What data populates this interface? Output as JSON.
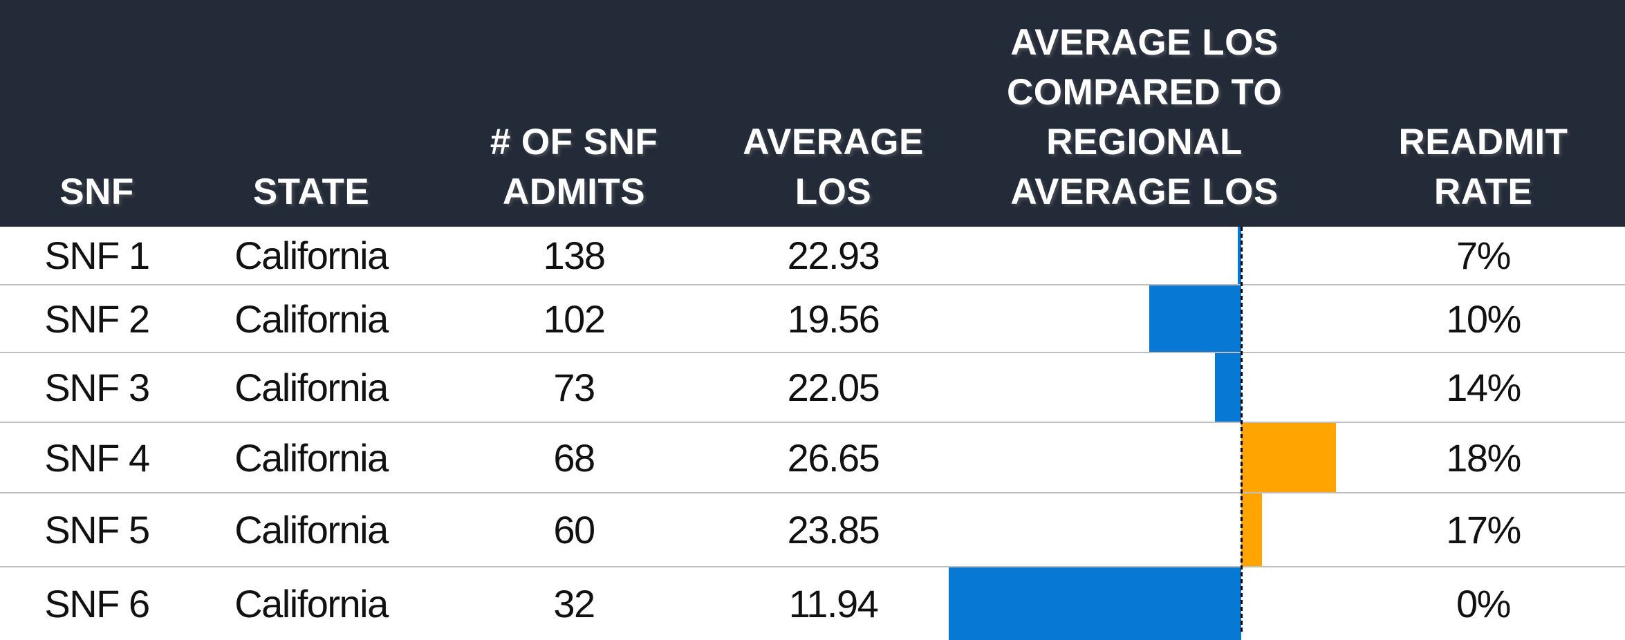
{
  "chart_data": {
    "type": "table",
    "column_headers": [
      [
        "SNF"
      ],
      [
        "STATE"
      ],
      [
        "# OF SNF",
        "ADMITS"
      ],
      [
        "AVERAGE",
        "LOS"
      ],
      [
        "AVERAGE LOS",
        "COMPARED TO",
        "REGIONAL",
        "AVERAGE LOS"
      ],
      [
        "READMIT",
        "RATE"
      ]
    ],
    "column_ids": [
      "snf",
      "state",
      "admits",
      "avg_los",
      "los_vs_regional",
      "readmit_rate"
    ],
    "rows": [
      {
        "snf": "SNF 1",
        "state": "California",
        "admits": 138,
        "avg_los": 22.93,
        "readmit_rate": "7%"
      },
      {
        "snf": "SNF 2",
        "state": "California",
        "admits": 102,
        "avg_los": 19.56,
        "readmit_rate": "10%"
      },
      {
        "snf": "SNF 3",
        "state": "California",
        "admits": 73,
        "avg_los": 22.05,
        "readmit_rate": "14%"
      },
      {
        "snf": "SNF 4",
        "state": "California",
        "admits": 68,
        "avg_los": 26.65,
        "readmit_rate": "18%"
      },
      {
        "snf": "SNF 5",
        "state": "California",
        "admits": 60,
        "avg_los": 23.85,
        "readmit_rate": "17%"
      },
      {
        "snf": "SNF 6",
        "state": "California",
        "admits": 32,
        "avg_los": 11.94,
        "readmit_rate": "0%"
      }
    ],
    "bar_column": {
      "header": "AVERAGE LOS COMPARED TO REGIONAL AVERAGE LOS",
      "field": "avg_los",
      "regional_average_los": 23.05,
      "below_average_color": "#0778D4",
      "above_average_color": "#FFA400",
      "axis_style": "dashed-black-vertical-line"
    },
    "layout_hints": {
      "legend": "none",
      "gridlines": "horizontal-row-dividers",
      "bar_baseline": "regional average"
    },
    "colors": {
      "header_bg": "#232B38",
      "header_text": "#FFFFFF",
      "row_divider": "#BEBEBE",
      "body_text": "#111111",
      "row_bg": "#FFFFFF",
      "axis_line": "#000000"
    }
  }
}
